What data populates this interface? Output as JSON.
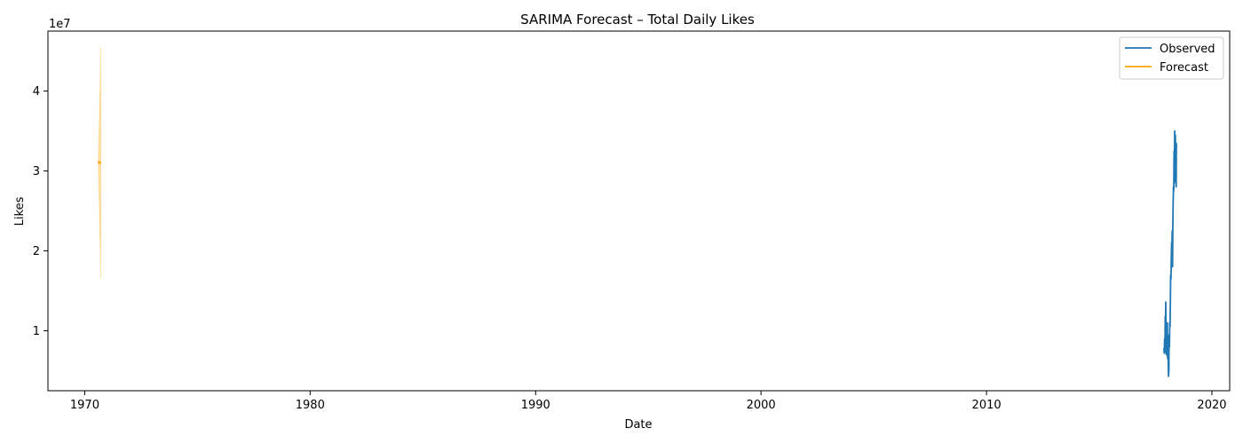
{
  "chart_data": {
    "type": "line",
    "title": "SARIMA Forecast – Total Daily Likes",
    "xlabel": "Date",
    "ylabel": "Likes",
    "y_offset_label": "1e7",
    "xlim": [
      "1968-05-15",
      "2020-10-15"
    ],
    "ylim": [
      2500000,
      47500000
    ],
    "x_ticks": [
      "1970",
      "1980",
      "1990",
      "2000",
      "2010",
      "2020"
    ],
    "y_ticks": [
      10000000,
      20000000,
      30000000,
      40000000
    ],
    "y_tick_labels": [
      "1",
      "2",
      "3",
      "4"
    ],
    "legend": {
      "placement": "top-right",
      "entries": [
        "Observed",
        "Forecast"
      ]
    },
    "grid": false,
    "series": [
      {
        "name": "Observed",
        "color": "#1f77b4",
        "points": [
          [
            "2017-11-14",
            7800000
          ],
          [
            "2017-11-20",
            7200000
          ],
          [
            "2017-11-26",
            9000000
          ],
          [
            "2017-12-01",
            7300000
          ],
          [
            "2017-12-06",
            11800000
          ],
          [
            "2017-12-10",
            7500000
          ],
          [
            "2017-12-14",
            13600000
          ],
          [
            "2017-12-19",
            9500000
          ],
          [
            "2017-12-24",
            7000000
          ],
          [
            "2017-12-29",
            10500000
          ],
          [
            "2018-01-04",
            8000000
          ],
          [
            "2018-01-09",
            11000000
          ],
          [
            "2018-01-14",
            6500000
          ],
          [
            "2018-01-19",
            9500000
          ],
          [
            "2018-01-24",
            6000000
          ],
          [
            "2018-01-28",
            4300000
          ],
          [
            "2018-02-02",
            5000000
          ],
          [
            "2018-02-07",
            9000000
          ],
          [
            "2018-02-12",
            8000000
          ],
          [
            "2018-02-17",
            11000000
          ],
          [
            "2018-02-22",
            10500000
          ],
          [
            "2018-02-27",
            13500000
          ],
          [
            "2018-03-04",
            17000000
          ],
          [
            "2018-03-09",
            16500000
          ],
          [
            "2018-03-14",
            19000000
          ],
          [
            "2018-03-19",
            21000000
          ],
          [
            "2018-03-24",
            20500000
          ],
          [
            "2018-03-29",
            22500000
          ],
          [
            "2018-04-03",
            18000000
          ],
          [
            "2018-04-08",
            23000000
          ],
          [
            "2018-04-13",
            26000000
          ],
          [
            "2018-04-18",
            28000000
          ],
          [
            "2018-04-23",
            27500000
          ],
          [
            "2018-04-28",
            32500000
          ],
          [
            "2018-05-03",
            28500000
          ],
          [
            "2018-05-08",
            35000000
          ],
          [
            "2018-05-13",
            30500000
          ],
          [
            "2018-05-18",
            34500000
          ],
          [
            "2018-05-23",
            33000000
          ],
          [
            "2018-05-28",
            29000000
          ],
          [
            "2018-06-01",
            28000000
          ],
          [
            "2018-06-04",
            33500000
          ]
        ]
      },
      {
        "name": "Forecast",
        "color": "#ffa500",
        "points": [
          [
            "1970-08-10",
            31200000
          ],
          [
            "1970-08-20",
            31000000
          ],
          [
            "1970-08-30",
            31100000
          ],
          [
            "1970-09-09",
            31000000
          ],
          [
            "1970-09-18",
            30900000
          ]
        ],
        "interval_upper": [
          [
            "1970-08-10",
            31500000
          ],
          [
            "1970-08-20",
            34500000
          ],
          [
            "1970-08-30",
            37500000
          ],
          [
            "1970-09-09",
            41000000
          ],
          [
            "1970-09-18",
            45500000
          ]
        ],
        "interval_lower": [
          [
            "1970-08-10",
            30700000
          ],
          [
            "1970-08-20",
            27500000
          ],
          [
            "1970-08-30",
            24500000
          ],
          [
            "1970-09-09",
            20500000
          ],
          [
            "1970-09-18",
            16500000
          ]
        ]
      }
    ]
  }
}
